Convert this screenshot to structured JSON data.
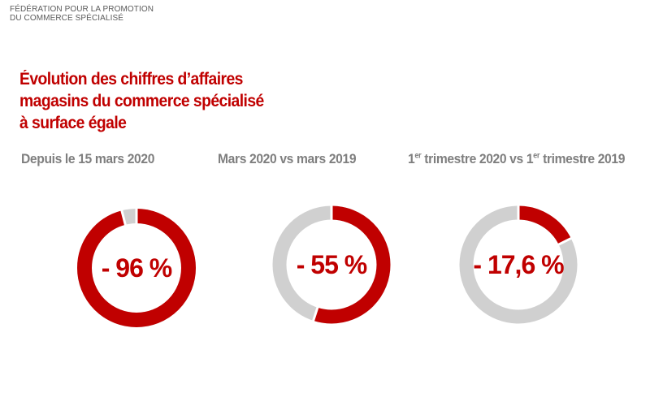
{
  "organization": {
    "line1": "FÉDÉRATION POUR LA PROMOTION",
    "line2": "DU COMMERCE SPÉCIALISÉ"
  },
  "title": {
    "line1": "Évolution des chiffres d’affaires",
    "line2": "magasins du commerce spécialisé",
    "line3": "à surface égale"
  },
  "colors": {
    "accent": "#c00000",
    "track": "#d0d0d0",
    "subtitle": "#7f7f7f"
  },
  "chart_data": [
    {
      "type": "pie",
      "subtitle": "Depuis le 15 mars 2020",
      "value": -96,
      "label": "- 96 %"
    },
    {
      "type": "pie",
      "subtitle": "Mars 2020 vs mars 2019",
      "value": -55,
      "label": "- 55 %"
    },
    {
      "type": "pie",
      "subtitle_parts": [
        "1",
        "er",
        " trimestre 2020 vs 1",
        "er",
        " trimestre 2019"
      ],
      "value": -17.6,
      "label": "- 17,6 %"
    }
  ]
}
